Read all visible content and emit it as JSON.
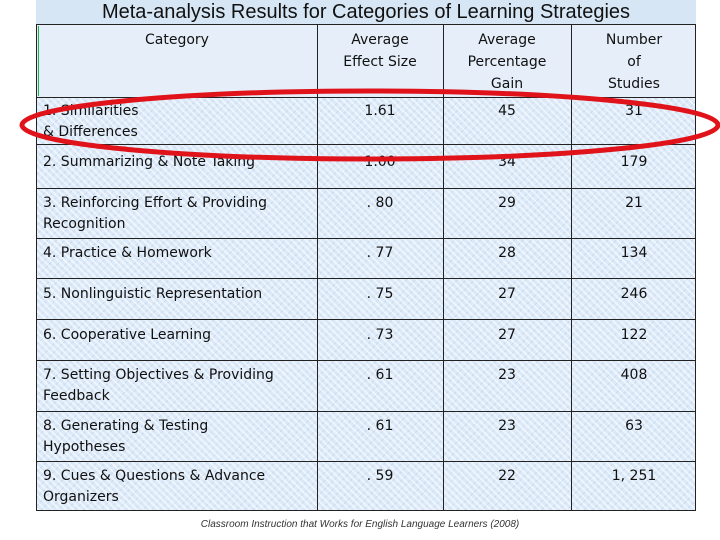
{
  "title": "Meta-analysis Results for Categories of Learning Strategies",
  "headers": {
    "category": "Category",
    "effect": [
      "Average",
      "Effect Size"
    ],
    "gain": [
      "Average",
      "Percentage",
      "Gain"
    ],
    "studies": [
      "Number",
      "of",
      "Studies"
    ]
  },
  "rows": [
    {
      "cat": [
        "1. Similarities",
        "& Differences"
      ],
      "effect": "1.61",
      "gain": "45",
      "studies": "31"
    },
    {
      "cat": [
        "2.   Summarizing & Note Taking"
      ],
      "effect": "1.00",
      "gain": "34",
      "studies": "179"
    },
    {
      "cat": [
        "3.   Reinforcing Effort & Providing",
        "Recognition"
      ],
      "effect": ". 80",
      "gain": "29",
      "studies": "21"
    },
    {
      "cat": [
        "4.   Practice & Homework"
      ],
      "effect": ". 77",
      "gain": "28",
      "studies": "134"
    },
    {
      "cat": [
        "5.   Nonlinguistic Representation"
      ],
      "effect": ". 75",
      "gain": "27",
      "studies": "246"
    },
    {
      "cat": [
        "6.   Cooperative Learning"
      ],
      "effect": ". 73",
      "gain": "27",
      "studies": "122"
    },
    {
      "cat": [
        "7.   Setting Objectives & Providing",
        "Feedback"
      ],
      "effect": ". 61",
      "gain": "23",
      "studies": "408"
    },
    {
      "cat": [
        "8.   Generating & Testing",
        "Hypotheses"
      ],
      "effect": ". 61",
      "gain": "23",
      "studies": "63"
    },
    {
      "cat": [
        "9.   Cues & Questions & Advance",
        "Organizers"
      ],
      "effect": ". 59",
      "gain": "22",
      "studies": "1, 251"
    }
  ],
  "caption": "Classroom Instruction that Works for English Language Learners (2008)",
  "colors": {
    "highlight": "#e0131b",
    "table_bg": "#dbe9f8",
    "title_bg": "#d7e6f5"
  }
}
